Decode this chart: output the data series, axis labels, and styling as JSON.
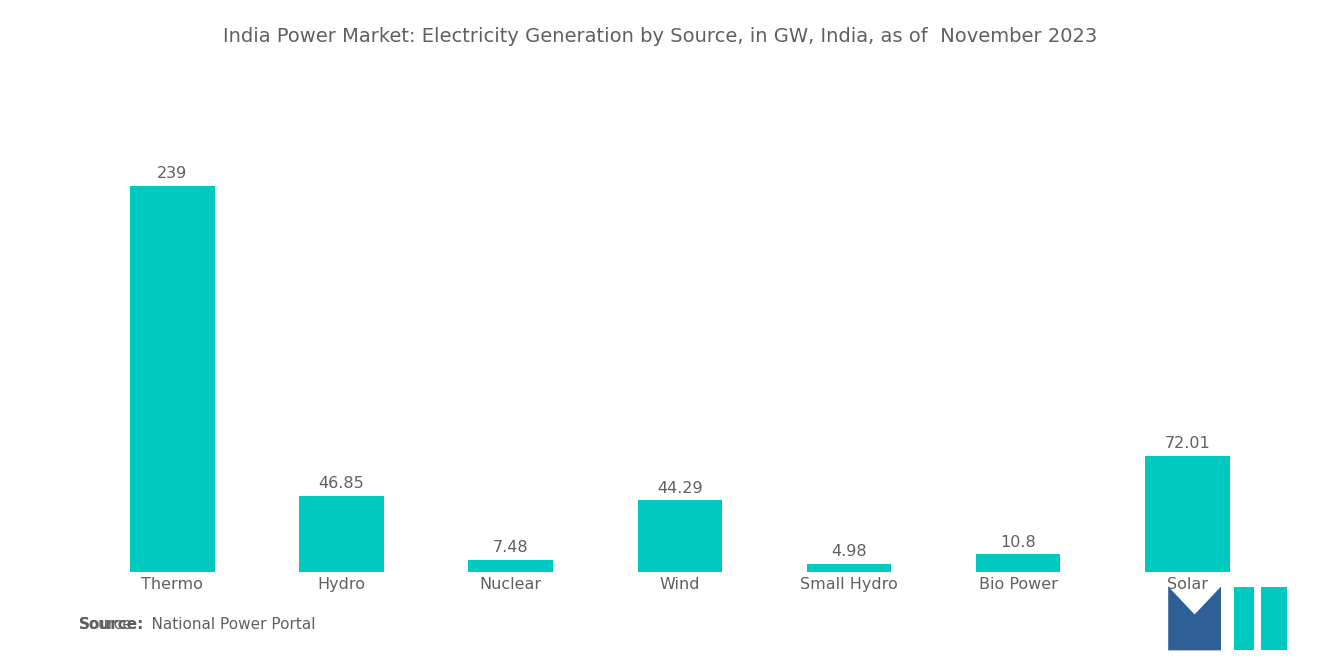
{
  "title": "India Power Market: Electricity Generation by Source, in GW, India, as of  November 2023",
  "categories": [
    "Thermo",
    "Hydro",
    "Nuclear",
    "Wind",
    "Small Hydro",
    "Bio Power",
    "Solar"
  ],
  "values": [
    239,
    46.85,
    7.48,
    44.29,
    4.98,
    10.8,
    72.01
  ],
  "labels": [
    "239",
    "46.85",
    "7.48",
    "44.29",
    "4.98",
    "10.8",
    "72.01"
  ],
  "bar_color": "#00C9C0",
  "background_color": "#ffffff",
  "title_color": "#606060",
  "label_color": "#606060",
  "source_bold": "Source:",
  "source_normal": "   National Power Portal",
  "title_fontsize": 14,
  "label_fontsize": 11.5,
  "tick_fontsize": 11.5,
  "source_fontsize": 11,
  "ylim": [
    0,
    280
  ],
  "logo_blue": "#2E6096",
  "logo_teal": "#00C9C0"
}
